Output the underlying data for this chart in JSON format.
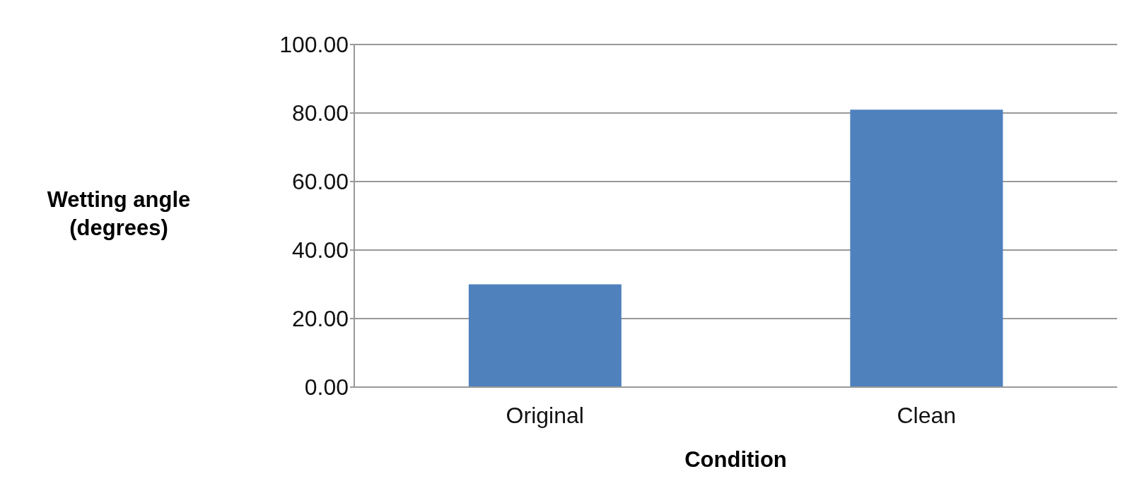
{
  "chart_data": {
    "type": "bar",
    "xlabel": "Condition",
    "ylabel": "Wetting angle (degrees)",
    "categories": [
      "Original",
      "Clean"
    ],
    "values": [
      30,
      81
    ],
    "color": "#4f81bd",
    "ylim": [
      0,
      100
    ],
    "yticks": [
      {
        "value": 0,
        "label": "0.00"
      },
      {
        "value": 20,
        "label": "20.00"
      },
      {
        "value": 40,
        "label": "40.00"
      },
      {
        "value": 60,
        "label": "60.00"
      },
      {
        "value": 80,
        "label": "80.00"
      },
      {
        "value": 100,
        "label": "100.00"
      }
    ],
    "grid": "y",
    "legend": false
  }
}
